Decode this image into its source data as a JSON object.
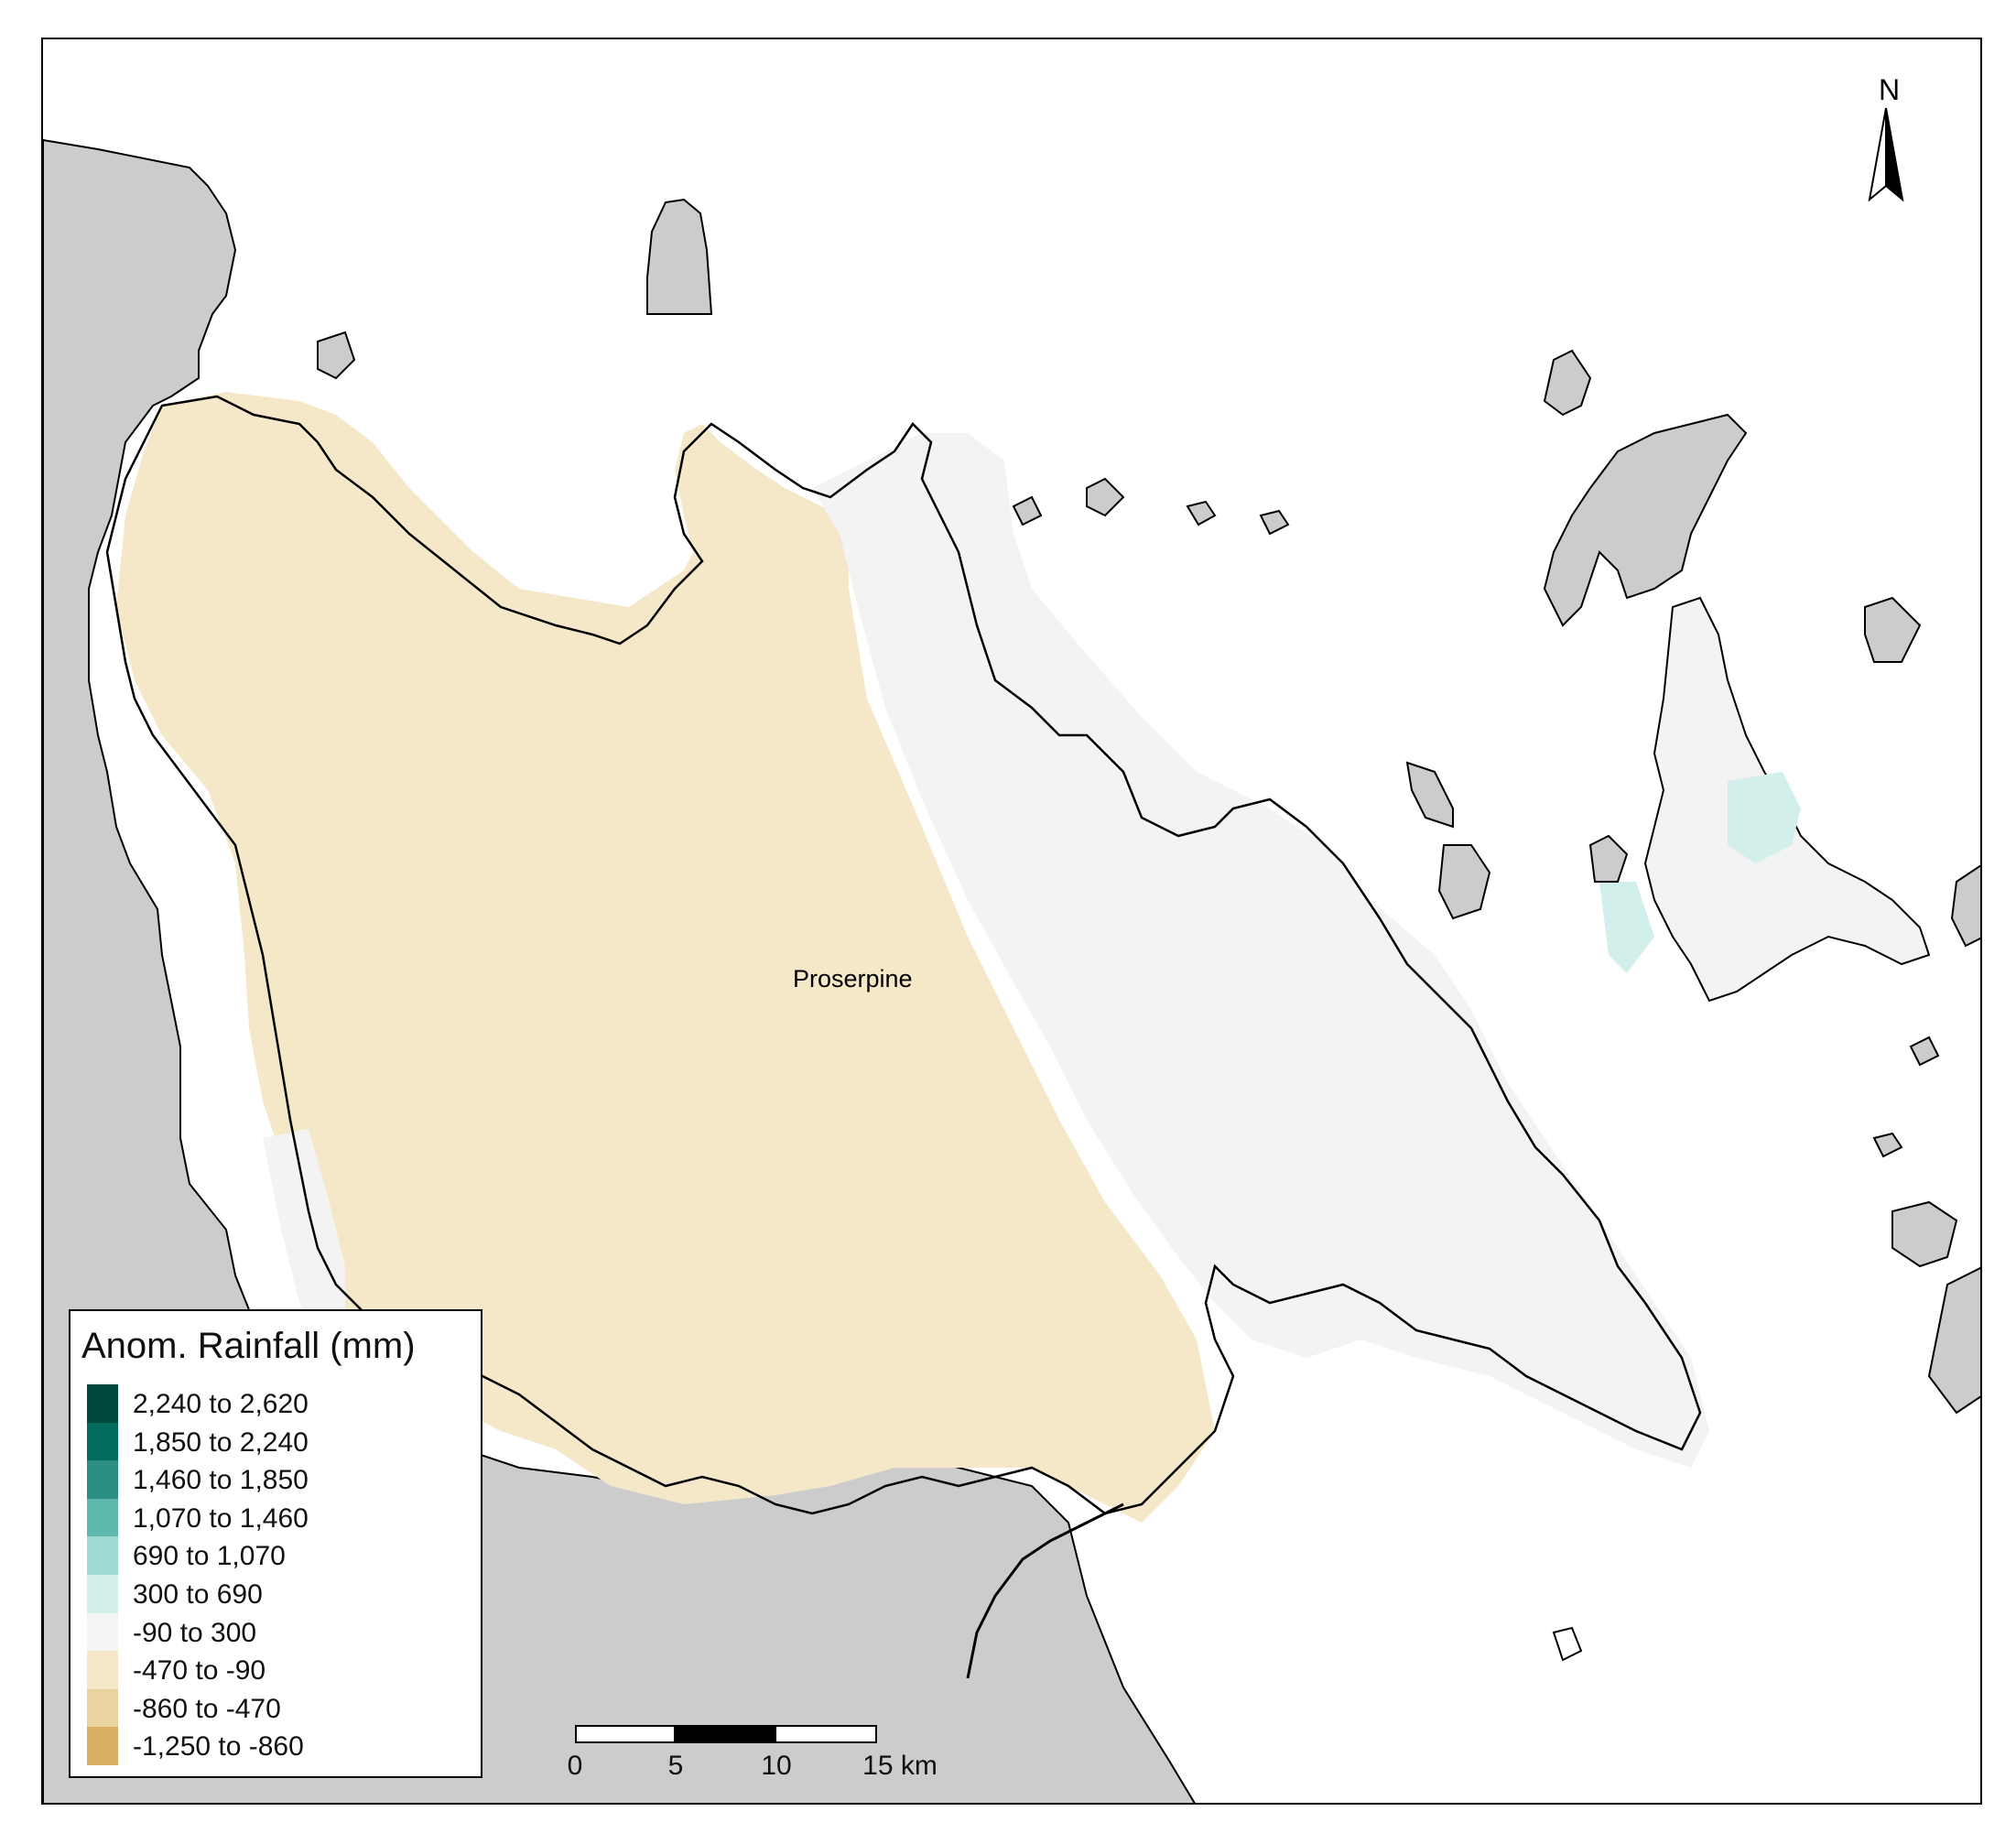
{
  "map": {
    "place_label": "Proserpine",
    "north_label": "N",
    "colors": {
      "background_land": "#cccccc",
      "sea": "#ffffff",
      "coastline": "#000000"
    }
  },
  "legend": {
    "title": "Anom. Rainfall (mm)",
    "items": [
      {
        "label": "2,240 to 2,620",
        "color": "#01493f"
      },
      {
        "label": "1,850 to 2,240",
        "color": "#016b5e"
      },
      {
        "label": "1,460 to 1,850",
        "color": "#2b8f85"
      },
      {
        "label": "1,070 to 1,460",
        "color": "#5fb8ad"
      },
      {
        "label": "690 to 1,070",
        "color": "#9edcd3"
      },
      {
        "label": "300 to 690",
        "color": "#d3efeb"
      },
      {
        "label": "-90 to 300",
        "color": "#f5f5f5"
      },
      {
        "label": "-470 to -90",
        "color": "#f5e8c8"
      },
      {
        "label": "-860 to -470",
        "color": "#ebd3a0"
      },
      {
        "label": "-1,250 to -860",
        "color": "#d9ad62"
      }
    ]
  },
  "scalebar": {
    "labels": [
      "0",
      "5",
      "10",
      "15 km"
    ]
  }
}
